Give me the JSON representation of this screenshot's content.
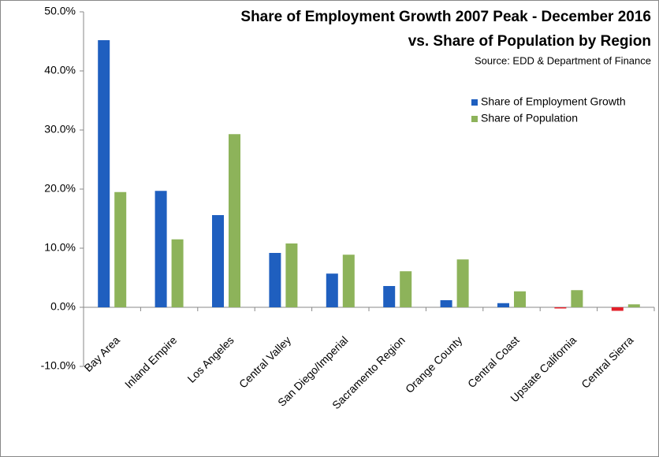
{
  "chart_data": {
    "type": "bar",
    "title": [
      "Share of Employment Growth 2007 Peak - December 2016",
      "vs. Share of Population by Region"
    ],
    "source": "Source:  EDD & Department of Finance",
    "categories": [
      "Bay Area",
      "Inland Empire",
      "Los Angeles",
      "Central Valley",
      "San Diego/Imperial",
      "Sacramento Region",
      "Orange County",
      "Central Coast",
      "Upstate California",
      "Central Sierra"
    ],
    "series": [
      {
        "name": "Share of Employment Growth",
        "color": "#1f5fbf",
        "negative_color": "#e3202a",
        "values": [
          45.2,
          19.7,
          15.6,
          9.2,
          5.7,
          3.6,
          1.2,
          0.7,
          -0.2,
          -0.6
        ]
      },
      {
        "name": "Share of Population",
        "color": "#8db35a",
        "values": [
          19.5,
          11.5,
          29.3,
          10.8,
          8.9,
          6.1,
          8.1,
          2.7,
          2.9,
          0.5
        ]
      }
    ],
    "ylim": [
      -10,
      50
    ],
    "yticks": [
      {
        "value": -10,
        "label": "-10.0%"
      },
      {
        "value": 0,
        "label": "0.0%"
      },
      {
        "value": 10,
        "label": "10.0%"
      },
      {
        "value": 20,
        "label": "20.0%"
      },
      {
        "value": 30,
        "label": "30.0%"
      },
      {
        "value": 40,
        "label": "40.0%"
      },
      {
        "value": 50,
        "label": "50.0%"
      }
    ],
    "grid": false,
    "legend": "upper right"
  }
}
